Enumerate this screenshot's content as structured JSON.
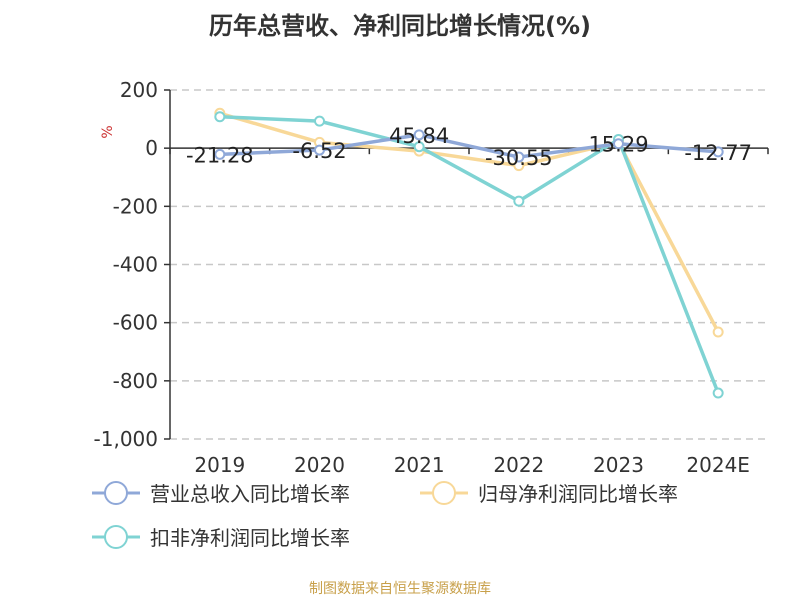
{
  "title": "历年总营收、净利同比增长情况(%)",
  "source": "制图数据来自恒生聚源数据库",
  "chart_data": {
    "type": "line",
    "title": "历年总营收、净利同比增长情况(%)",
    "unit_label": "%",
    "categories": [
      "2019",
      "2020",
      "2021",
      "2022",
      "2023",
      "2024E"
    ],
    "ylim": [
      -1000,
      200
    ],
    "yticks": [
      200,
      0,
      -200,
      -400,
      -600,
      -800,
      -1000
    ],
    "ytick_labels": [
      "200",
      "0",
      "-200",
      "-400",
      "-600",
      "-800",
      "-1,000"
    ],
    "grid": true,
    "legend_position": "bottom",
    "series": [
      {
        "name": "营业总收入同比增长率",
        "color": "#8fa8d8",
        "values": [
          -21.28,
          -6.52,
          45.84,
          -30.55,
          15.29,
          -12.77
        ],
        "labels": [
          "-21.28",
          "-6.52",
          "45.84",
          "-30.55",
          "15.29",
          "-12.77"
        ]
      },
      {
        "name": "归母净利润同比增长率",
        "color": "#f8d898",
        "values": [
          120,
          20,
          -10,
          -60,
          20,
          -632
        ]
      },
      {
        "name": "扣非净利润同比增长率",
        "color": "#7fd3d3",
        "values": [
          108,
          93,
          5,
          -182,
          30,
          -842
        ]
      }
    ]
  }
}
